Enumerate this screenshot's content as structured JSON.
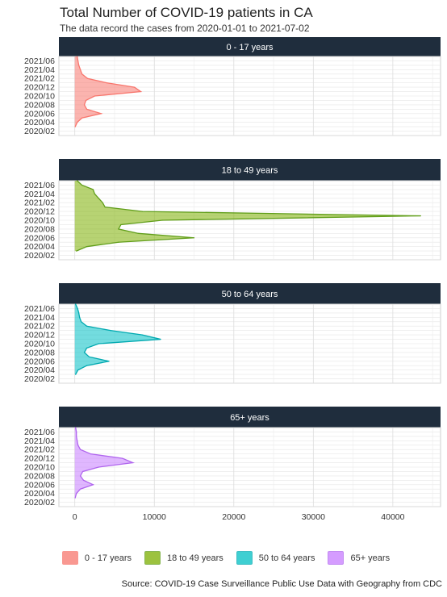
{
  "chart_data": {
    "type": "area",
    "title": "Total Number of COVID-19 patients in CA",
    "subtitle": "The data record the cases from 2020-01-01 to 2021-07-02",
    "caption": "Source: COVID-19 Case Surveillance Public Use Data with Geography from CDC",
    "xlim": [
      -2000,
      46000
    ],
    "x_ticks": [
      0,
      10000,
      20000,
      30000,
      40000
    ],
    "x_tick_labels": [
      "0",
      "10000",
      "20000",
      "30000",
      "40000"
    ],
    "y_ticks": [
      "2021/06",
      "2021/04",
      "2021/02",
      "2020/12",
      "2020/10",
      "2020/08",
      "2020/06",
      "2020/04",
      "2020/02"
    ],
    "y_range": [
      "2020-01",
      "2021-07"
    ],
    "grid": true,
    "legend_position": "bottom",
    "months": [
      "2020-03",
      "2020-04",
      "2020-05",
      "2020-06",
      "2020-07",
      "2020-08",
      "2020-09",
      "2020-10",
      "2020-11",
      "2020-12",
      "2021-01",
      "2021-02",
      "2021-03",
      "2021-04",
      "2021-05",
      "2021-06",
      "2021-07"
    ],
    "series": [
      {
        "name": "0 - 17 years",
        "color": "#F8766D",
        "fill": "#F8766D",
        "values": [
          50,
          300,
          900,
          3300,
          1500,
          1200,
          1400,
          2500,
          8300,
          7500,
          4000,
          1600,
          900,
          700,
          500,
          400,
          300
        ]
      },
      {
        "name": "18 to 49 years",
        "color": "#619E1A",
        "fill": "#7CAE00",
        "values": [
          200,
          1500,
          5500,
          15000,
          8000,
          5500,
          5800,
          11000,
          43500,
          8500,
          3800,
          3500,
          3000,
          2500,
          2300,
          900,
          300
        ]
      },
      {
        "name": "50 to 64 years",
        "color": "#00A9B0",
        "fill": "#00BFC4",
        "values": [
          100,
          400,
          1500,
          4300,
          1800,
          1200,
          1500,
          3000,
          10800,
          8500,
          4500,
          1500,
          800,
          600,
          500,
          350,
          100
        ]
      },
      {
        "name": "65+ years",
        "color": "#B065EE",
        "fill": "#C77CFF",
        "values": [
          50,
          200,
          700,
          2300,
          1100,
          700,
          1000,
          3000,
          7300,
          6000,
          2000,
          700,
          400,
          300,
          200,
          200,
          100
        ]
      }
    ]
  }
}
